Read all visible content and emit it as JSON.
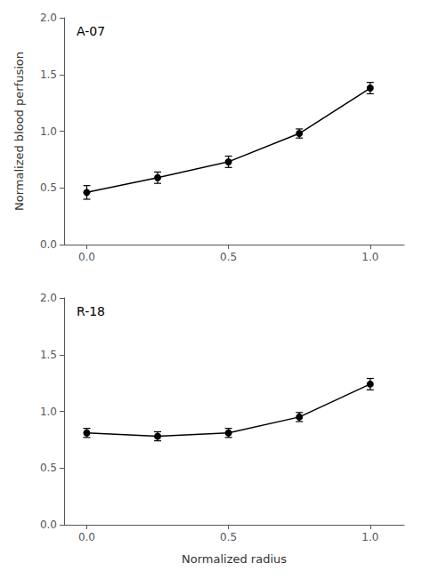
{
  "chart_data": [
    {
      "type": "line",
      "annotations": [
        "A-07"
      ],
      "ylabel": "Normalized blood perfusion",
      "x": [
        0.0,
        0.25,
        0.5,
        0.75,
        1.0
      ],
      "series": [
        {
          "values": [
            0.46,
            0.59,
            0.73,
            0.98,
            1.38
          ],
          "yerr": [
            0.06,
            0.05,
            0.05,
            0.04,
            0.05
          ],
          "color": "black",
          "marker": "circle"
        }
      ],
      "xlim": [
        -0.08,
        1.12
      ],
      "xticks": [
        {
          "value": 0.0,
          "label": "0.0"
        },
        {
          "value": 0.5,
          "label": "0.5"
        },
        {
          "value": 1.0,
          "label": "1.0"
        }
      ],
      "ylim": [
        0.0,
        2.0
      ],
      "yticks": [
        {
          "value": 0.0,
          "label": "0.0"
        },
        {
          "value": 0.5,
          "label": "0.5"
        },
        {
          "value": 1.0,
          "label": "1.0"
        },
        {
          "value": 1.5,
          "label": "1.5"
        },
        {
          "value": 2.0,
          "label": "2.0"
        }
      ],
      "grid": false
    },
    {
      "type": "line",
      "annotations": [
        "R-18"
      ],
      "xlabel": "Normalized radius",
      "x": [
        0.0,
        0.25,
        0.5,
        0.75,
        1.0
      ],
      "series": [
        {
          "values": [
            0.81,
            0.78,
            0.81,
            0.95,
            1.24
          ],
          "yerr": [
            0.04,
            0.04,
            0.04,
            0.04,
            0.05
          ],
          "color": "black",
          "marker": "circle"
        }
      ],
      "xlim": [
        -0.08,
        1.12
      ],
      "xticks": [
        {
          "value": 0.0,
          "label": "0.0"
        },
        {
          "value": 0.5,
          "label": "0.5"
        },
        {
          "value": 1.0,
          "label": "1.0"
        }
      ],
      "ylim": [
        0.0,
        2.0
      ],
      "yticks": [
        {
          "value": 0.0,
          "label": "0.0"
        },
        {
          "value": 0.5,
          "label": "0.5"
        },
        {
          "value": 1.0,
          "label": "1.0"
        },
        {
          "value": 1.5,
          "label": "1.5"
        },
        {
          "value": 2.0,
          "label": "2.0"
        }
      ],
      "grid": false
    }
  ]
}
